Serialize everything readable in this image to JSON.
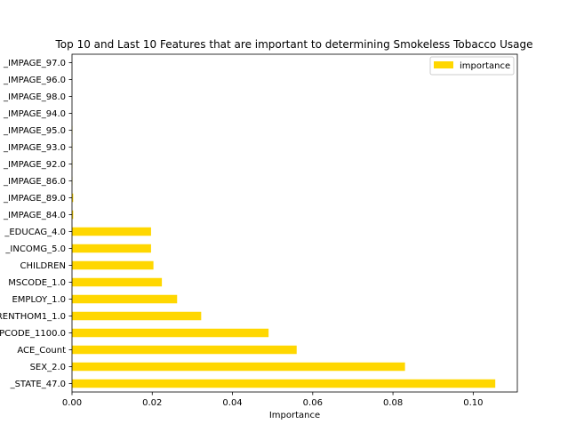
{
  "chart_data": {
    "type": "bar",
    "orientation": "horizontal",
    "title": "Top 10 and Last 10 Features that are important to determining Smokeless Tobacco Usage",
    "xlabel": "Importance",
    "ylabel": "",
    "xlim": [
      0,
      0.111
    ],
    "xticks": [
      0.0,
      0.02,
      0.04,
      0.06,
      0.08,
      0.1
    ],
    "xtick_labels": [
      "0.00",
      "0.02",
      "0.04",
      "0.06",
      "0.08",
      "0.10"
    ],
    "grid": false,
    "legend_position": "top-right",
    "bar_color": "#FFD700",
    "categories": [
      "_STATE_47.0",
      "SEX_2.0",
      "ACE_Count",
      "PCODE_1100.0",
      "RENTHOM1_1.0",
      "EMPLOY_1.0",
      "MSCODE_1.0",
      "CHILDREN",
      "_INCOMG_5.0",
      "_EDUCAG_4.0",
      "_IMPAGE_84.0",
      "_IMPAGE_89.0",
      "_IMPAGE_86.0",
      "_IMPAGE_92.0",
      "_IMPAGE_93.0",
      "_IMPAGE_95.0",
      "_IMPAGE_94.0",
      "_IMPAGE_98.0",
      "_IMPAGE_96.0",
      "_IMPAGE_97.0"
    ],
    "series": [
      {
        "name": "importance",
        "values": [
          0.1055,
          0.083,
          0.056,
          0.049,
          0.0322,
          0.0262,
          0.0224,
          0.0203,
          0.0197,
          0.0197,
          0.0003,
          0.0003,
          0.0001,
          0.0001,
          0.0001,
          0.0001,
          0.0,
          0.0,
          0.0,
          0.0
        ]
      }
    ]
  }
}
